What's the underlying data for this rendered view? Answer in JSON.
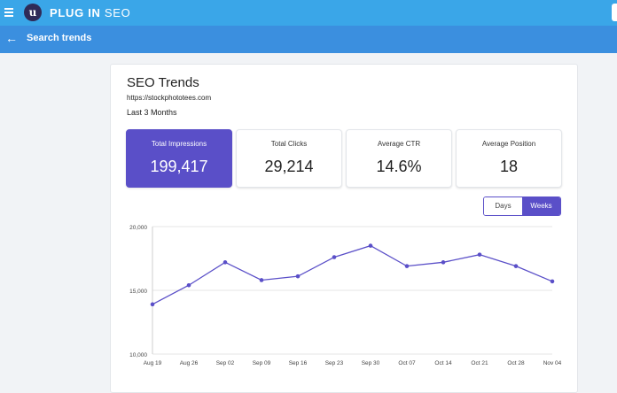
{
  "topbar": {
    "brand_bold": "PLUG IN",
    "brand_light": " SEO",
    "logo_letter": "u",
    "menu_icon": "hamburger-icon"
  },
  "subbar": {
    "title": "Search trends",
    "back_icon": "arrow-left-icon"
  },
  "page": {
    "title": "SEO Trends",
    "url": "https://stockphototees.com",
    "period": "Last 3 Months"
  },
  "stats": [
    {
      "label": "Total Impressions",
      "value": "199,417",
      "active": true
    },
    {
      "label": "Total Clicks",
      "value": "29,214",
      "active": false
    },
    {
      "label": "Average CTR",
      "value": "14.6%",
      "active": false
    },
    {
      "label": "Average Position",
      "value": "18",
      "active": false
    }
  ],
  "toggle": {
    "days": "Days",
    "weeks": "Weeks",
    "selected": "Weeks"
  },
  "chart_data": {
    "type": "line",
    "categories": [
      "Aug 19",
      "Aug 26",
      "Sep 02",
      "Sep 09",
      "Sep 16",
      "Sep 23",
      "Sep 30",
      "Oct 07",
      "Oct 14",
      "Oct 21",
      "Oct 28",
      "Nov 04"
    ],
    "series": [
      {
        "values": [
          13900,
          15400,
          17200,
          15800,
          16100,
          17600,
          18500,
          16900,
          17200,
          17800,
          16900,
          15700
        ]
      }
    ],
    "ylim": [
      10000,
      20000
    ],
    "yticks": [
      "10,000",
      "15,000",
      "20,000"
    ],
    "ytick_values": [
      10000,
      15000,
      20000
    ],
    "color": "#5a4fc8",
    "grid": true
  }
}
